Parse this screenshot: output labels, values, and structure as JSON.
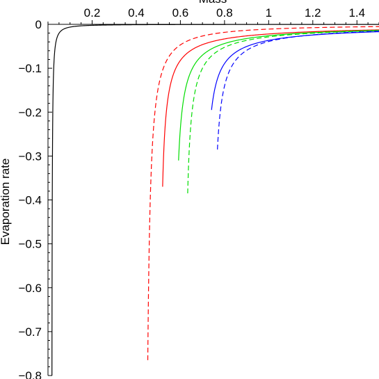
{
  "chart_data": {
    "type": "line",
    "title": "",
    "xlabel": "Mass",
    "ylabel": "Evaporation rate",
    "xlim": [
      0,
      1.5
    ],
    "ylim": [
      -0.8,
      0
    ],
    "grid": false,
    "x_ticks": [
      {
        "value": 0.2,
        "label": "0.2"
      },
      {
        "value": 0.4,
        "label": "0.4"
      },
      {
        "value": 0.6,
        "label": "0.6"
      },
      {
        "value": 0.8,
        "label": "0.8"
      },
      {
        "value": 1.0,
        "label": "1"
      },
      {
        "value": 1.2,
        "label": "1.2"
      },
      {
        "value": 1.4,
        "label": "1.4"
      }
    ],
    "y_ticks": [
      {
        "value": 0,
        "label": "0"
      },
      {
        "value": -0.1,
        "label": "−0.1"
      },
      {
        "value": -0.2,
        "label": "−0.2"
      },
      {
        "value": -0.3,
        "label": "−0.3"
      },
      {
        "value": -0.4,
        "label": "−0.4"
      },
      {
        "value": -0.5,
        "label": "−0.5"
      },
      {
        "value": -0.6,
        "label": "−0.6"
      },
      {
        "value": -0.7,
        "label": "−0.7"
      },
      {
        "value": -0.8,
        "label": "−0.8"
      }
    ],
    "series": [
      {
        "color": "#000000",
        "dash": "solid",
        "m0": 0.016,
        "a": 0.00025,
        "p": 1.3,
        "y_end": -0.8
      },
      {
        "color": "#ff0000",
        "dash": "solid",
        "m0": 0.505,
        "a": 0.0125,
        "p": 0.8,
        "y_end": -0.37
      },
      {
        "color": "#ff0000",
        "dash": "dashed",
        "m0": 0.437,
        "a": 0.0055,
        "p": 1.18,
        "y_end": -0.765
      },
      {
        "color": "#00dd00",
        "dash": "solid",
        "m0": 0.57,
        "a": 0.0129,
        "p": 0.83,
        "y_end": -0.31
      },
      {
        "color": "#00dd00",
        "dash": "dashed",
        "m0": 0.617,
        "a": 0.013,
        "p": 0.82,
        "y_end": -0.385
      },
      {
        "color": "#0000ff",
        "dash": "solid",
        "m0": 0.707,
        "a": 0.014,
        "p": 0.78,
        "y_end": -0.195
      },
      {
        "color": "#0000ff",
        "dash": "dashed",
        "m0": 0.743,
        "a": 0.0123,
        "p": 0.85,
        "y_end": -0.285
      }
    ]
  }
}
